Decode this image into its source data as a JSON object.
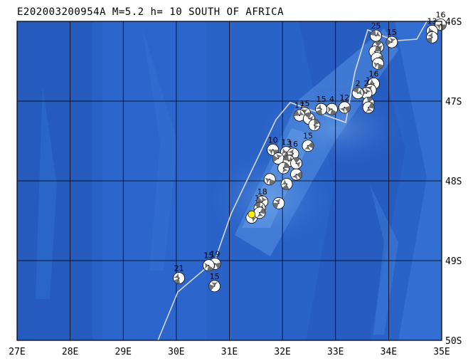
{
  "title": "E202003200954A M=5.2 h= 10 SOUTH OF AFRICA",
  "map": {
    "lon_range": [
      27,
      35
    ],
    "lat_range": [
      46,
      50
    ],
    "lon_labels": [
      "27E",
      "28E",
      "29E",
      "30E",
      "31E",
      "32E",
      "33E",
      "34E",
      "35E"
    ],
    "lat_labels": [
      "46S",
      "47S",
      "48S",
      "49S",
      "50S"
    ],
    "ocean_color": "#2a63c8",
    "plate_boundary_color": "#d8d8d8",
    "event_marker_color": "#ffee00"
  },
  "event": {
    "lon": 31.42,
    "lat": 48.42
  },
  "focal_mechanisms": [
    {
      "lon": 34.98,
      "lat": 46.04,
      "label": "16"
    },
    {
      "lon": 34.82,
      "lat": 46.12,
      "label": "13"
    },
    {
      "lon": 34.82,
      "lat": 46.2,
      "label": ""
    },
    {
      "lon": 34.06,
      "lat": 46.26,
      "label": "15"
    },
    {
      "lon": 33.76,
      "lat": 46.18,
      "label": "25"
    },
    {
      "lon": 33.8,
      "lat": 46.32,
      "label": "17"
    },
    {
      "lon": 33.74,
      "lat": 46.38,
      "label": ""
    },
    {
      "lon": 33.78,
      "lat": 46.46,
      "label": ""
    },
    {
      "lon": 33.8,
      "lat": 46.53,
      "label": ""
    },
    {
      "lon": 33.72,
      "lat": 46.78,
      "label": "16"
    },
    {
      "lon": 33.66,
      "lat": 46.86,
      "label": "18"
    },
    {
      "lon": 33.58,
      "lat": 46.9,
      "label": "2"
    },
    {
      "lon": 33.42,
      "lat": 46.9,
      "label": "2"
    },
    {
      "lon": 33.62,
      "lat": 47.02,
      "label": ""
    },
    {
      "lon": 33.62,
      "lat": 47.08,
      "label": ""
    },
    {
      "lon": 33.17,
      "lat": 47.08,
      "label": "12"
    },
    {
      "lon": 32.93,
      "lat": 47.1,
      "label": "4"
    },
    {
      "lon": 32.73,
      "lat": 47.1,
      "label": "15"
    },
    {
      "lon": 32.42,
      "lat": 47.15,
      "label": "15"
    },
    {
      "lon": 32.32,
      "lat": 47.18,
      "label": "17"
    },
    {
      "lon": 32.5,
      "lat": 47.22,
      "label": ""
    },
    {
      "lon": 32.6,
      "lat": 47.3,
      "label": ""
    },
    {
      "lon": 32.48,
      "lat": 47.56,
      "label": "15"
    },
    {
      "lon": 31.82,
      "lat": 47.61,
      "label": "10"
    },
    {
      "lon": 32.07,
      "lat": 47.64,
      "label": "13"
    },
    {
      "lon": 32.2,
      "lat": 47.66,
      "label": "16"
    },
    {
      "lon": 31.92,
      "lat": 47.72,
      "label": ""
    },
    {
      "lon": 32.12,
      "lat": 47.75,
      "label": ""
    },
    {
      "lon": 32.26,
      "lat": 47.78,
      "label": ""
    },
    {
      "lon": 32.02,
      "lat": 47.84,
      "label": "21"
    },
    {
      "lon": 32.26,
      "lat": 47.92,
      "label": ""
    },
    {
      "lon": 31.76,
      "lat": 47.98,
      "label": ""
    },
    {
      "lon": 32.08,
      "lat": 48.04,
      "label": ""
    },
    {
      "lon": 31.93,
      "lat": 48.28,
      "label": ""
    },
    {
      "lon": 31.62,
      "lat": 48.26,
      "label": "18"
    },
    {
      "lon": 31.57,
      "lat": 48.34,
      "label": "12"
    },
    {
      "lon": 31.42,
      "lat": 48.46,
      "label": ""
    },
    {
      "lon": 31.57,
      "lat": 48.4,
      "label": ""
    },
    {
      "lon": 30.73,
      "lat": 49.04,
      "label": "19"
    },
    {
      "lon": 30.61,
      "lat": 49.06,
      "label": "15"
    },
    {
      "lon": 30.05,
      "lat": 49.22,
      "label": "21"
    },
    {
      "lon": 30.72,
      "lat": 49.32,
      "label": "15"
    }
  ]
}
